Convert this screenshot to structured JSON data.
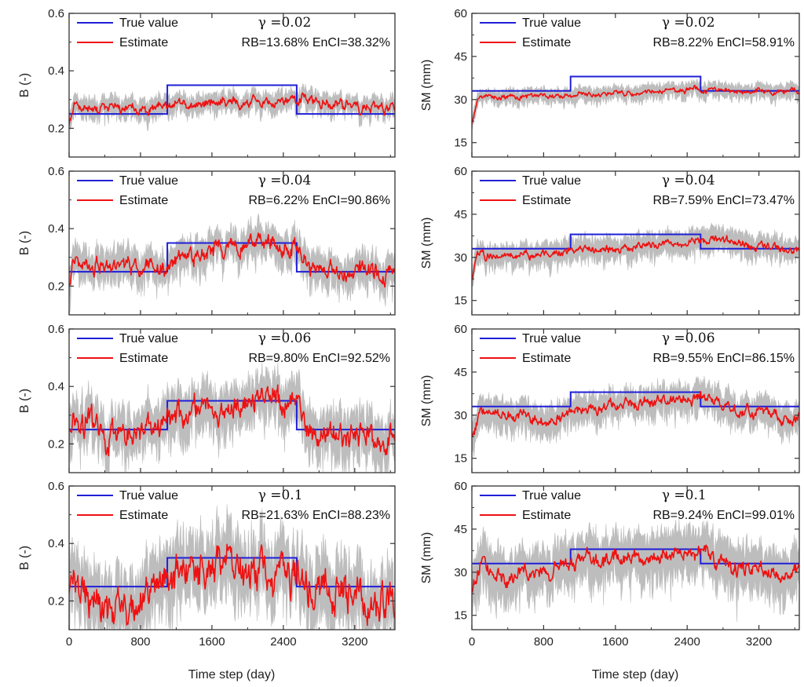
{
  "figure": {
    "xlabel": "Time step (day)"
  },
  "chart_data": [
    {
      "type": "line",
      "id": "b1",
      "panel": "B",
      "ylabel": "B (-)",
      "ylim": [
        0.1,
        0.6
      ],
      "yticks": [
        0.2,
        0.4,
        0.6
      ],
      "ytick_labels": [
        "0.2",
        "0.4",
        "0.6"
      ],
      "xlim": [
        0,
        3650
      ],
      "xticks": [
        0,
        800,
        1600,
        2400,
        3200
      ],
      "xtick_labels": [
        "0",
        "800",
        "1600",
        "2400",
        "3200"
      ],
      "show_xticklabels": false,
      "gamma_label": "γ =0.02",
      "stats_label": "RB=13.68% EnCI=38.32%",
      "legend": [
        "True value",
        "Estimate"
      ],
      "true_value": [
        {
          "x": 0,
          "y": 0.25
        },
        {
          "x": 1100,
          "y": 0.25
        },
        {
          "x": 1100,
          "y": 0.35
        },
        {
          "x": 2550,
          "y": 0.35
        },
        {
          "x": 2550,
          "y": 0.25
        },
        {
          "x": 3650,
          "y": 0.25
        }
      ],
      "estimate": [
        {
          "x": 0,
          "y": 0.22
        },
        {
          "x": 60,
          "y": 0.3
        },
        {
          "x": 200,
          "y": 0.27
        },
        {
          "x": 500,
          "y": 0.265
        },
        {
          "x": 800,
          "y": 0.27
        },
        {
          "x": 1100,
          "y": 0.27
        },
        {
          "x": 1400,
          "y": 0.28
        },
        {
          "x": 1800,
          "y": 0.29
        },
        {
          "x": 2200,
          "y": 0.295
        },
        {
          "x": 2550,
          "y": 0.3
        },
        {
          "x": 2900,
          "y": 0.285
        },
        {
          "x": 3300,
          "y": 0.275
        },
        {
          "x": 3650,
          "y": 0.265
        }
      ],
      "band_halfwidth": 0.03,
      "noise_amp": 0.012,
      "seed": 11
    },
    {
      "type": "line",
      "id": "sm1",
      "panel": "SM",
      "ylabel": "SM (mm)",
      "ylim": [
        10,
        60
      ],
      "yticks": [
        15,
        30,
        45,
        60
      ],
      "ytick_labels": [
        "15",
        "30",
        "45",
        "60"
      ],
      "xlim": [
        0,
        3650
      ],
      "xticks": [
        0,
        800,
        1600,
        2400,
        3200
      ],
      "xtick_labels": [
        "0",
        "800",
        "1600",
        "2400",
        "3200"
      ],
      "show_xticklabels": false,
      "gamma_label": "γ =0.02",
      "stats_label": "RB=8.22% EnCI=58.91%",
      "legend": [
        "True value",
        "Estimate"
      ],
      "true_value": [
        {
          "x": 0,
          "y": 33
        },
        {
          "x": 1100,
          "y": 33
        },
        {
          "x": 1100,
          "y": 38
        },
        {
          "x": 2550,
          "y": 38
        },
        {
          "x": 2550,
          "y": 33
        },
        {
          "x": 3650,
          "y": 33
        }
      ],
      "estimate": [
        {
          "x": 0,
          "y": 22
        },
        {
          "x": 60,
          "y": 30
        },
        {
          "x": 200,
          "y": 31
        },
        {
          "x": 600,
          "y": 31
        },
        {
          "x": 1100,
          "y": 31.5
        },
        {
          "x": 1600,
          "y": 32
        },
        {
          "x": 2200,
          "y": 33
        },
        {
          "x": 2550,
          "y": 33.5
        },
        {
          "x": 3000,
          "y": 33
        },
        {
          "x": 3650,
          "y": 33
        }
      ],
      "band_halfwidth": 2.2,
      "noise_amp": 0.6,
      "seed": 21
    },
    {
      "type": "line",
      "id": "b2",
      "panel": "B",
      "ylabel": "B (-)",
      "ylim": [
        0.1,
        0.6
      ],
      "yticks": [
        0.2,
        0.4,
        0.6
      ],
      "ytick_labels": [
        "0.2",
        "0.4",
        "0.6"
      ],
      "xlim": [
        0,
        3650
      ],
      "xticks": [
        0,
        800,
        1600,
        2400,
        3200
      ],
      "xtick_labels": [
        "0",
        "800",
        "1600",
        "2400",
        "3200"
      ],
      "show_xticklabels": false,
      "gamma_label": "γ =0.04",
      "stats_label": "RB=6.22% EnCI=90.86%",
      "legend": [
        "True value",
        "Estimate"
      ],
      "true_value": [
        {
          "x": 0,
          "y": 0.25
        },
        {
          "x": 1100,
          "y": 0.25
        },
        {
          "x": 1100,
          "y": 0.35
        },
        {
          "x": 2550,
          "y": 0.35
        },
        {
          "x": 2550,
          "y": 0.25
        },
        {
          "x": 3650,
          "y": 0.25
        }
      ],
      "estimate": [
        {
          "x": 0,
          "y": 0.22
        },
        {
          "x": 60,
          "y": 0.29
        },
        {
          "x": 300,
          "y": 0.27
        },
        {
          "x": 800,
          "y": 0.26
        },
        {
          "x": 1100,
          "y": 0.27
        },
        {
          "x": 1400,
          "y": 0.3
        },
        {
          "x": 1800,
          "y": 0.34
        },
        {
          "x": 2200,
          "y": 0.35
        },
        {
          "x": 2550,
          "y": 0.34
        },
        {
          "x": 2700,
          "y": 0.27
        },
        {
          "x": 3200,
          "y": 0.25
        },
        {
          "x": 3650,
          "y": 0.24
        }
      ],
      "band_halfwidth": 0.05,
      "noise_amp": 0.02,
      "seed": 31
    },
    {
      "type": "line",
      "id": "sm2",
      "panel": "SM",
      "ylabel": "SM (mm)",
      "ylim": [
        10,
        60
      ],
      "yticks": [
        15,
        30,
        45,
        60
      ],
      "ytick_labels": [
        "15",
        "30",
        "45",
        "60"
      ],
      "xlim": [
        0,
        3650
      ],
      "xticks": [
        0,
        800,
        1600,
        2400,
        3200
      ],
      "xtick_labels": [
        "0",
        "800",
        "1600",
        "2400",
        "3200"
      ],
      "show_xticklabels": false,
      "gamma_label": "γ =0.04",
      "stats_label": "RB=7.59% EnCI=73.47%",
      "legend": [
        "True value",
        "Estimate"
      ],
      "true_value": [
        {
          "x": 0,
          "y": 33
        },
        {
          "x": 1100,
          "y": 33
        },
        {
          "x": 1100,
          "y": 38
        },
        {
          "x": 2550,
          "y": 38
        },
        {
          "x": 2550,
          "y": 33
        },
        {
          "x": 3650,
          "y": 33
        }
      ],
      "estimate": [
        {
          "x": 0,
          "y": 22
        },
        {
          "x": 60,
          "y": 30
        },
        {
          "x": 300,
          "y": 31
        },
        {
          "x": 800,
          "y": 31
        },
        {
          "x": 1100,
          "y": 32
        },
        {
          "x": 1600,
          "y": 33
        },
        {
          "x": 2200,
          "y": 35
        },
        {
          "x": 2550,
          "y": 36.5
        },
        {
          "x": 2800,
          "y": 35.5
        },
        {
          "x": 3200,
          "y": 34
        },
        {
          "x": 3650,
          "y": 32
        }
      ],
      "band_halfwidth": 3.5,
      "noise_amp": 0.9,
      "seed": 41
    },
    {
      "type": "line",
      "id": "b3",
      "panel": "B",
      "ylabel": "B (-)",
      "ylim": [
        0.1,
        0.6
      ],
      "yticks": [
        0.2,
        0.4,
        0.6
      ],
      "ytick_labels": [
        "0.2",
        "0.4",
        "0.6"
      ],
      "xlim": [
        0,
        3650
      ],
      "xticks": [
        0,
        800,
        1600,
        2400,
        3200
      ],
      "xtick_labels": [
        "0",
        "800",
        "1600",
        "2400",
        "3200"
      ],
      "show_xticklabels": false,
      "gamma_label": "γ =0.06",
      "stats_label": "RB=9.80% EnCI=92.52%",
      "legend": [
        "True value",
        "Estimate"
      ],
      "true_value": [
        {
          "x": 0,
          "y": 0.25
        },
        {
          "x": 1100,
          "y": 0.25
        },
        {
          "x": 1100,
          "y": 0.35
        },
        {
          "x": 2550,
          "y": 0.35
        },
        {
          "x": 2550,
          "y": 0.25
        },
        {
          "x": 3650,
          "y": 0.25
        }
      ],
      "estimate": [
        {
          "x": 0,
          "y": 0.26
        },
        {
          "x": 200,
          "y": 0.27
        },
        {
          "x": 500,
          "y": 0.22
        },
        {
          "x": 800,
          "y": 0.24
        },
        {
          "x": 1100,
          "y": 0.28
        },
        {
          "x": 1400,
          "y": 0.31
        },
        {
          "x": 1800,
          "y": 0.34
        },
        {
          "x": 2200,
          "y": 0.36
        },
        {
          "x": 2550,
          "y": 0.35
        },
        {
          "x": 2700,
          "y": 0.25
        },
        {
          "x": 3100,
          "y": 0.23
        },
        {
          "x": 3650,
          "y": 0.22
        }
      ],
      "band_halfwidth": 0.07,
      "noise_amp": 0.03,
      "seed": 51
    },
    {
      "type": "line",
      "id": "sm3",
      "panel": "SM",
      "ylabel": "SM (mm)",
      "ylim": [
        10,
        60
      ],
      "yticks": [
        15,
        30,
        45,
        60
      ],
      "ytick_labels": [
        "15",
        "30",
        "45",
        "60"
      ],
      "xlim": [
        0,
        3650
      ],
      "xticks": [
        0,
        800,
        1600,
        2400,
        3200
      ],
      "xtick_labels": [
        "0",
        "800",
        "1600",
        "2400",
        "3200"
      ],
      "show_xticklabels": false,
      "gamma_label": "γ =0.06",
      "stats_label": "RB=9.55% EnCI=86.15%",
      "legend": [
        "True value",
        "Estimate"
      ],
      "true_value": [
        {
          "x": 0,
          "y": 33
        },
        {
          "x": 1100,
          "y": 33
        },
        {
          "x": 1100,
          "y": 38
        },
        {
          "x": 2550,
          "y": 38
        },
        {
          "x": 2550,
          "y": 33
        },
        {
          "x": 3650,
          "y": 33
        }
      ],
      "estimate": [
        {
          "x": 0,
          "y": 24
        },
        {
          "x": 100,
          "y": 31
        },
        {
          "x": 400,
          "y": 30
        },
        {
          "x": 800,
          "y": 28
        },
        {
          "x": 1100,
          "y": 31
        },
        {
          "x": 1600,
          "y": 33
        },
        {
          "x": 2200,
          "y": 35
        },
        {
          "x": 2550,
          "y": 36
        },
        {
          "x": 3000,
          "y": 32
        },
        {
          "x": 3650,
          "y": 29
        }
      ],
      "band_halfwidth": 4.5,
      "noise_amp": 1.3,
      "seed": 61
    },
    {
      "type": "line",
      "id": "b4",
      "panel": "B",
      "ylabel": "B (-)",
      "ylim": [
        0.1,
        0.6
      ],
      "yticks": [
        0.2,
        0.4,
        0.6
      ],
      "ytick_labels": [
        "0.2",
        "0.4",
        "0.6"
      ],
      "xlim": [
        0,
        3650
      ],
      "xticks": [
        0,
        800,
        1600,
        2400,
        3200
      ],
      "xtick_labels": [
        "0",
        "800",
        "1600",
        "2400",
        "3200"
      ],
      "show_xticklabels": true,
      "gamma_label": "γ =0.1",
      "stats_label": "RB=21.63% EnCI=88.23%",
      "legend": [
        "True value",
        "Estimate"
      ],
      "true_value": [
        {
          "x": 0,
          "y": 0.25
        },
        {
          "x": 1100,
          "y": 0.25
        },
        {
          "x": 1100,
          "y": 0.35
        },
        {
          "x": 2550,
          "y": 0.35
        },
        {
          "x": 2550,
          "y": 0.25
        },
        {
          "x": 3650,
          "y": 0.25
        }
      ],
      "estimate": [
        {
          "x": 0,
          "y": 0.24
        },
        {
          "x": 200,
          "y": 0.22
        },
        {
          "x": 400,
          "y": 0.17
        },
        {
          "x": 800,
          "y": 0.19
        },
        {
          "x": 1100,
          "y": 0.25
        },
        {
          "x": 1300,
          "y": 0.32
        },
        {
          "x": 1700,
          "y": 0.3
        },
        {
          "x": 2200,
          "y": 0.32
        },
        {
          "x": 2550,
          "y": 0.3
        },
        {
          "x": 2800,
          "y": 0.22
        },
        {
          "x": 3200,
          "y": 0.2
        },
        {
          "x": 3650,
          "y": 0.18
        }
      ],
      "band_halfwidth": 0.1,
      "noise_amp": 0.045,
      "seed": 71
    },
    {
      "type": "line",
      "id": "sm4",
      "panel": "SM",
      "ylabel": "SM (mm)",
      "ylim": [
        10,
        60
      ],
      "yticks": [
        15,
        30,
        45,
        60
      ],
      "ytick_labels": [
        "15",
        "30",
        "45",
        "60"
      ],
      "xlim": [
        0,
        3650
      ],
      "xticks": [
        0,
        800,
        1600,
        2400,
        3200
      ],
      "xtick_labels": [
        "0",
        "800",
        "1600",
        "2400",
        "3200"
      ],
      "show_xticklabels": true,
      "gamma_label": "γ =0.1",
      "stats_label": "RB=9.24% EnCI=99.01%",
      "legend": [
        "True value",
        "Estimate"
      ],
      "true_value": [
        {
          "x": 0,
          "y": 33
        },
        {
          "x": 1100,
          "y": 33
        },
        {
          "x": 1100,
          "y": 38
        },
        {
          "x": 2550,
          "y": 38
        },
        {
          "x": 2550,
          "y": 33
        },
        {
          "x": 3650,
          "y": 33
        }
      ],
      "estimate": [
        {
          "x": 0,
          "y": 24
        },
        {
          "x": 100,
          "y": 33
        },
        {
          "x": 400,
          "y": 28
        },
        {
          "x": 800,
          "y": 30
        },
        {
          "x": 1100,
          "y": 33
        },
        {
          "x": 1600,
          "y": 34
        },
        {
          "x": 2200,
          "y": 36
        },
        {
          "x": 2550,
          "y": 38
        },
        {
          "x": 2700,
          "y": 33
        },
        {
          "x": 3200,
          "y": 30
        },
        {
          "x": 3650,
          "y": 30
        }
      ],
      "band_halfwidth": 7.5,
      "noise_amp": 1.8,
      "seed": 81
    }
  ],
  "colors": {
    "true_value": "#1f1fd8",
    "estimate": "#ee1111",
    "band": "#bdbdbd",
    "axis": "#333333"
  }
}
